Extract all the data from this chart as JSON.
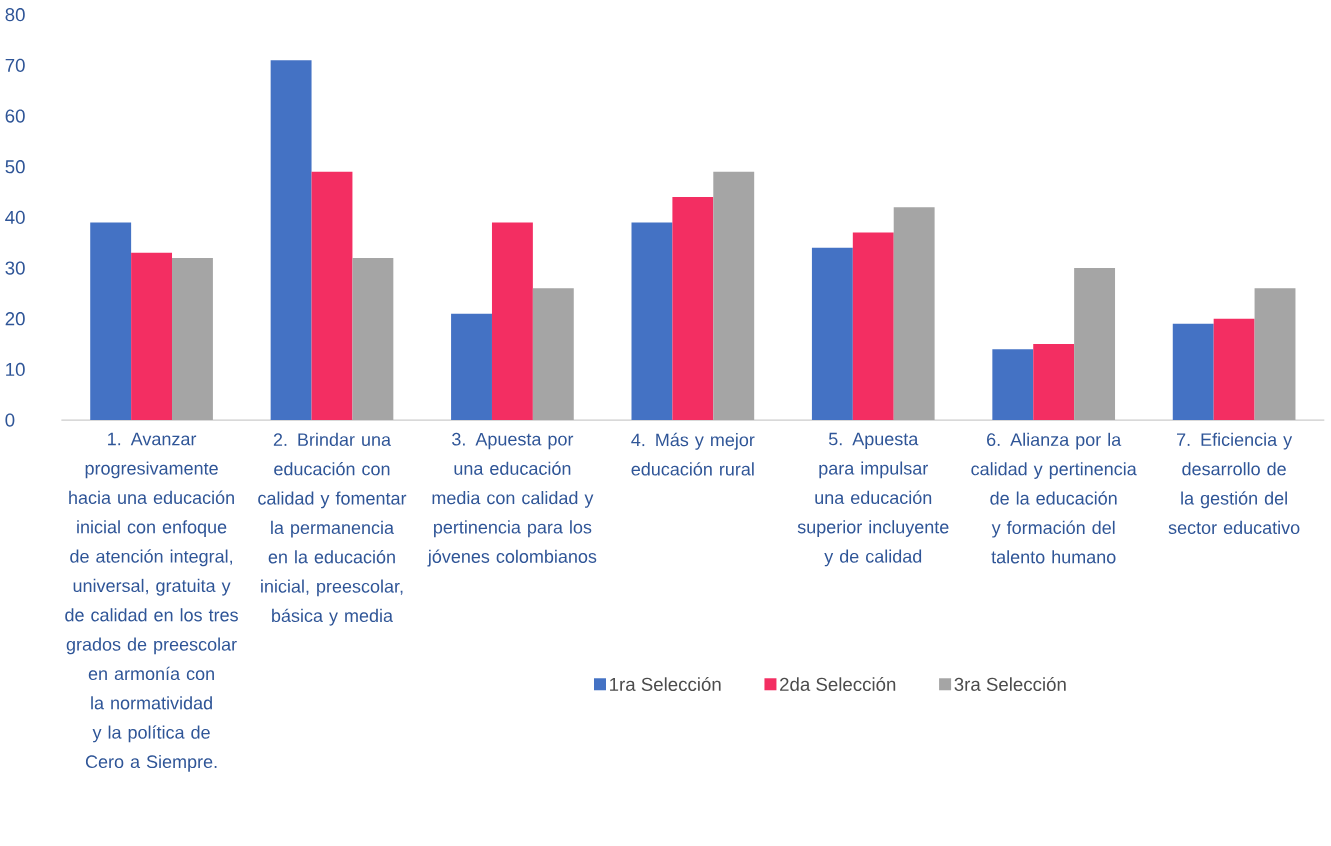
{
  "chart_data": {
    "type": "bar",
    "categories": [
      "1. Avanzar progresivamente hacia una educación inicial con enfoque de atención integral, universal, gratuita y de calidad en los tres grados de preescolar en armonía con la normatividad y la política de Cero a Siempre.",
      "2. Brindar una educación con calidad y fomentar la permanencia en la educación inicial, preescolar, básica y media",
      "3. Apuesta por una educación media con calidad y pertinencia para los jóvenes colombianos",
      "4. Más y mejor educación rural",
      "5. Apuesta para impulsar una educación superior incluyente y de calidad",
      "6. Alianza por la calidad y pertinencia de la educación y formación del talento humano",
      "7. Eficiencia y desarrollo de la gestión del sector educativo"
    ],
    "series": [
      {
        "name": "1ra Selección",
        "color": "#4472c4",
        "values": [
          39,
          71,
          21,
          39,
          34,
          14,
          19
        ]
      },
      {
        "name": "2da Selección",
        "color": "#f32e62",
        "values": [
          33,
          49,
          39,
          44,
          37,
          15,
          20
        ]
      },
      {
        "name": "3ra Selección",
        "color": "#a5a5a5",
        "values": [
          32,
          32,
          26,
          49,
          42,
          30,
          26
        ]
      }
    ],
    "ylim": [
      0,
      80
    ],
    "yticks": [
      0,
      10,
      20,
      30,
      40,
      50,
      60,
      70,
      80
    ],
    "legend": "bottom"
  }
}
